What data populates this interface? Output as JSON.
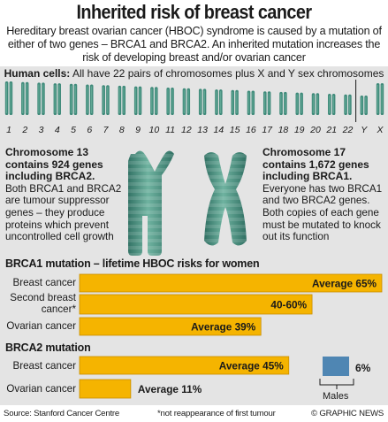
{
  "title": "Inherited risk of breast cancer",
  "intro": "Hereditary breast ovarian cancer (HBOC) syndrome is caused by a mutation of either of two genes – BRCA1 and BRCA2. An inherited mutation increases the risk of developing breast and/or ovarian cancer",
  "human_cells": {
    "label": "Human cells:",
    "text": "All have 22 pairs of chromosomes plus X and Y sex chromosomes"
  },
  "chromosome_labels": [
    "1",
    "2",
    "3",
    "4",
    "5",
    "6",
    "7",
    "8",
    "9",
    "10",
    "11",
    "12",
    "13",
    "14",
    "15",
    "16",
    "17",
    "18",
    "19",
    "20",
    "21",
    "22",
    "Y",
    "X"
  ],
  "chromosome13": {
    "heading": "Chromosome 13 contains 924 genes including BRCA2.",
    "body": "Both BRCA1 and BRCA2 are tumour suppressor genes – they produce proteins which prevent uncontrolled cell growth"
  },
  "chromosome17": {
    "heading": "Chromosome 17 contains 1,672 genes including BRCA1.",
    "body": "Everyone has two BRCA1 and two BRCA2 genes. Both copies of each gene must be mutated to knock out its function"
  },
  "colors": {
    "bar": "#f5b400",
    "bar_edge": "#c98e00",
    "males": "#4f86b3",
    "chromosome": "#3f8a7a",
    "chromosome_light": "#6fb3a0",
    "panel": "#e4e4e4"
  },
  "chart_data": [
    {
      "type": "bar",
      "title": "BRCA1 mutation – lifetime HBOC risks for women",
      "categories": [
        "Breast cancer",
        "Second breast cancer*",
        "Ovarian cancer"
      ],
      "values": [
        65,
        50,
        39
      ],
      "value_labels": [
        "Average 65%",
        "40-60%",
        "Average 39%"
      ],
      "xlim": [
        0,
        65
      ]
    },
    {
      "type": "bar",
      "title": "BRCA2 mutation",
      "categories": [
        "Breast cancer",
        "Ovarian cancer"
      ],
      "values": [
        45,
        11
      ],
      "value_labels": [
        "Average 45%",
        "Average 11%"
      ],
      "xlim": [
        0,
        65
      ]
    }
  ],
  "legend": {
    "value": "6%",
    "label": "Males"
  },
  "footer": {
    "source": "Source: Stanford Cancer Centre",
    "note": "*not reappearance of first tumour",
    "credit": "© GRAPHIC NEWS"
  }
}
